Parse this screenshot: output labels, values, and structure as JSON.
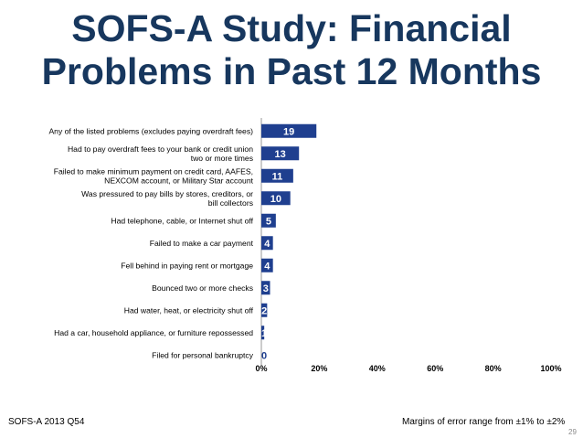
{
  "slide": {
    "title_line1": "SOFS-A Study: Financial",
    "title_line2": "Problems in Past 12 Months",
    "source": "SOFS-A 2013 Q54",
    "margin_note": "Margins of error range from ±1% to ±2%",
    "page_number": "29"
  },
  "chart_data": {
    "type": "bar",
    "orientation": "horizontal",
    "categories": [
      [
        "Any of the listed problems (excludes paying overdraft fees)"
      ],
      [
        "Had to pay overdraft fees to your bank or credit union",
        "two or more times"
      ],
      [
        "Failed to make minimum payment on credit card, AAFES,",
        "NEXCOM account, or Military Star account"
      ],
      [
        "Was pressured to pay bills by stores, creditors, or",
        "bill collectors"
      ],
      [
        "Had telephone, cable, or Internet shut off"
      ],
      [
        "Failed to make a car payment"
      ],
      [
        "Fell behind in paying rent or mortgage"
      ],
      [
        "Bounced two or more checks"
      ],
      [
        "Had water, heat, or electricity shut off"
      ],
      [
        "Had a car, household appliance, or furniture repossessed"
      ],
      [
        "Filed for personal bankruptcy"
      ]
    ],
    "values": [
      19,
      13,
      11,
      10,
      5,
      4,
      4,
      3,
      2,
      1,
      0
    ],
    "xlim": [
      0,
      100
    ],
    "xticks": [
      "0%",
      "20%",
      "40%",
      "60%",
      "80%",
      "100%"
    ],
    "bar_color": "#1f3f8f",
    "label_color": "#ffffff",
    "grid": false
  }
}
